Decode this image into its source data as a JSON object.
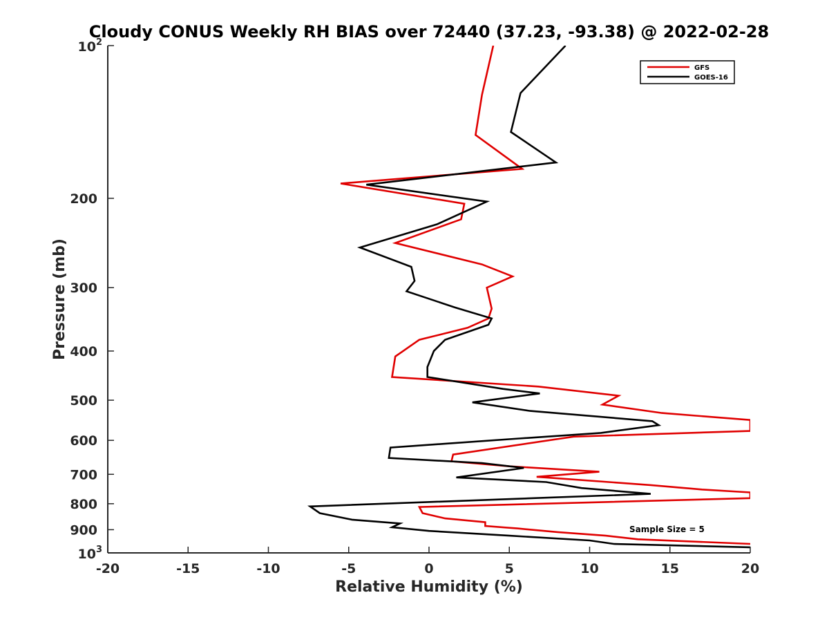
{
  "chart_data": {
    "type": "line",
    "title": "Cloudy CONUS Weekly RH BIAS over 72440 (37.23, -93.38) @ 2022-02-28",
    "xlabel": "Relative Humidity (%)",
    "ylabel": "Pressure (mb)",
    "xlim": [
      -20,
      20
    ],
    "ylim": [
      100,
      1000
    ],
    "y_scale": "log",
    "y_reversed": true,
    "grid": false,
    "legend_position": "top-right",
    "x_ticks": [
      -20,
      -15,
      -10,
      -5,
      0,
      5,
      10,
      15,
      20
    ],
    "y_ticks": [
      {
        "value": 100,
        "base": "10",
        "exp": "2"
      },
      {
        "value": 200,
        "label": "200"
      },
      {
        "value": 300,
        "label": "300"
      },
      {
        "value": 400,
        "label": "400"
      },
      {
        "value": 500,
        "label": "500"
      },
      {
        "value": 600,
        "label": "600"
      },
      {
        "value": 700,
        "label": "700"
      },
      {
        "value": 800,
        "label": "800"
      },
      {
        "value": 900,
        "label": "900"
      },
      {
        "value": 1000,
        "base": "10",
        "exp": "3"
      }
    ],
    "annotation": "Sample Size = 5",
    "series": [
      {
        "name": "GFS",
        "color": "#e00000",
        "points": [
          [
            4.0,
            100
          ],
          [
            3.3,
            125
          ],
          [
            2.9,
            150
          ],
          [
            5.8,
            175
          ],
          [
            -5.5,
            187
          ],
          [
            2.2,
            205
          ],
          [
            2.0,
            220
          ],
          [
            -2.1,
            245
          ],
          [
            3.3,
            270
          ],
          [
            5.2,
            285
          ],
          [
            3.6,
            300
          ],
          [
            3.9,
            330
          ],
          [
            3.7,
            345
          ],
          [
            2.4,
            360
          ],
          [
            -0.6,
            380
          ],
          [
            -2.1,
            410
          ],
          [
            -2.3,
            450
          ],
          [
            6.8,
            470
          ],
          [
            11.8,
            490
          ],
          [
            10.8,
            510
          ],
          [
            14.5,
            530
          ],
          [
            20.0,
            547
          ],
          [
            20.0,
            575
          ],
          [
            9.0,
            590
          ],
          [
            1.5,
            640
          ],
          [
            1.4,
            660
          ],
          [
            5.0,
            675
          ],
          [
            10.6,
            692
          ],
          [
            6.7,
            708
          ],
          [
            13.8,
            735
          ],
          [
            17.0,
            750
          ],
          [
            20.0,
            760
          ],
          [
            20.0,
            780
          ],
          [
            -0.6,
            812
          ],
          [
            -0.4,
            835
          ],
          [
            1.0,
            855
          ],
          [
            3.5,
            870
          ],
          [
            3.5,
            885
          ],
          [
            5.5,
            895
          ],
          [
            8.0,
            910
          ],
          [
            11.0,
            925
          ],
          [
            13.0,
            940
          ],
          [
            20.0,
            960
          ]
        ]
      },
      {
        "name": "GOES-16",
        "color": "#000000",
        "points": [
          [
            8.5,
            100
          ],
          [
            5.7,
            124
          ],
          [
            5.1,
            148
          ],
          [
            7.9,
            170
          ],
          [
            -3.9,
            188
          ],
          [
            3.6,
            203
          ],
          [
            0.5,
            225
          ],
          [
            -4.3,
            250
          ],
          [
            -1.1,
            273
          ],
          [
            -0.9,
            291
          ],
          [
            -1.4,
            305
          ],
          [
            1.6,
            328
          ],
          [
            3.9,
            345
          ],
          [
            3.7,
            355
          ],
          [
            1.0,
            380
          ],
          [
            0.3,
            400
          ],
          [
            -0.1,
            430
          ],
          [
            -0.1,
            450
          ],
          [
            4.6,
            475
          ],
          [
            6.9,
            485
          ],
          [
            2.7,
            505
          ],
          [
            6.3,
            525
          ],
          [
            13.9,
            550
          ],
          [
            14.3,
            560
          ],
          [
            10.7,
            580
          ],
          [
            5.6,
            595
          ],
          [
            -2.4,
            620
          ],
          [
            -2.5,
            650
          ],
          [
            3.3,
            665
          ],
          [
            5.9,
            680
          ],
          [
            1.7,
            710
          ],
          [
            7.3,
            725
          ],
          [
            9.5,
            745
          ],
          [
            13.8,
            765
          ],
          [
            6.5,
            780
          ],
          [
            -7.4,
            810
          ],
          [
            -6.8,
            835
          ],
          [
            -4.8,
            860
          ],
          [
            -1.8,
            875
          ],
          [
            -2.3,
            890
          ],
          [
            0.0,
            905
          ],
          [
            5.0,
            925
          ],
          [
            10.0,
            945
          ],
          [
            11.5,
            960
          ],
          [
            20.0,
            975
          ]
        ]
      }
    ]
  }
}
